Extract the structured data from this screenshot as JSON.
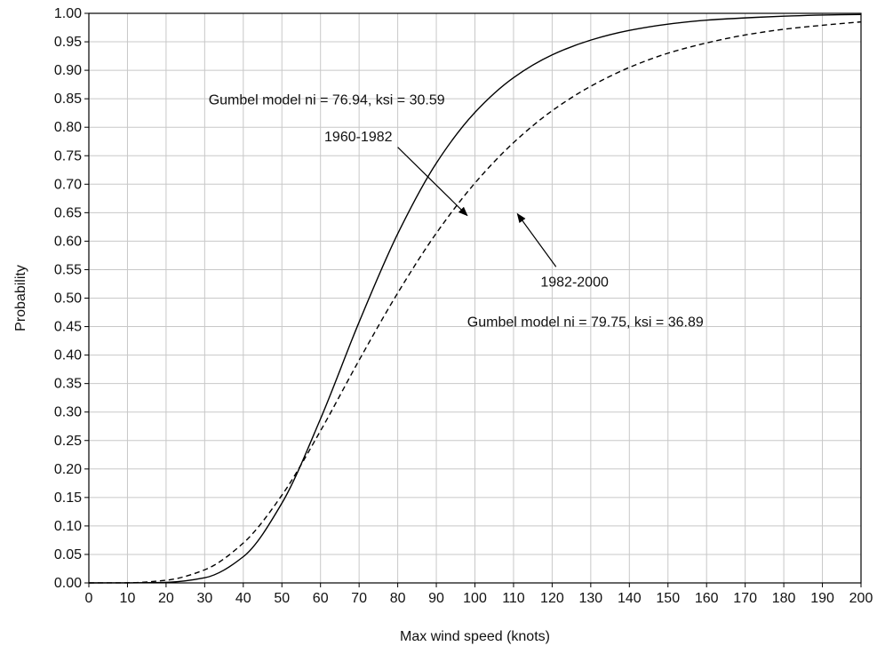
{
  "chart_data": {
    "type": "line",
    "title": "",
    "xlabel": "Max wind speed (knots)",
    "ylabel": "Probability",
    "xlim": [
      0,
      200
    ],
    "ylim": [
      0,
      1
    ],
    "x_ticks": [
      0,
      10,
      20,
      30,
      40,
      50,
      60,
      70,
      80,
      90,
      100,
      110,
      120,
      130,
      140,
      150,
      160,
      170,
      180,
      190,
      200
    ],
    "y_ticks": [
      0,
      0.05,
      0.1,
      0.15,
      0.2,
      0.25,
      0.3,
      0.35,
      0.4,
      0.45,
      0.5,
      0.55,
      0.6,
      0.65,
      0.7,
      0.75,
      0.8,
      0.85,
      0.9,
      0.95,
      1.0
    ],
    "x_tick_labels": [
      "0",
      "10",
      "20",
      "30",
      "40",
      "50",
      "60",
      "70",
      "80",
      "90",
      "100",
      "110",
      "120",
      "130",
      "140",
      "150",
      "160",
      "170",
      "180",
      "190",
      "200"
    ],
    "y_tick_labels": [
      "0.00",
      "0.05",
      "0.10",
      "0.15",
      "0.20",
      "0.25",
      "0.30",
      "0.35",
      "0.40",
      "0.45",
      "0.50",
      "0.55",
      "0.60",
      "0.65",
      "0.70",
      "0.75",
      "0.80",
      "0.85",
      "0.90",
      "0.95",
      "1.00"
    ],
    "grid": true,
    "x": [
      0,
      10,
      20,
      30,
      40,
      50,
      60,
      70,
      80,
      90,
      100,
      110,
      120,
      130,
      140,
      150,
      160,
      170,
      180,
      190,
      200
    ],
    "series": [
      {
        "label": "1960-1982",
        "model": "Gumbel model ni = 76.94, ksi = 30.59",
        "style": "solid",
        "color": "#000000",
        "values": [
          0.0,
          0.0001,
          0.0009,
          0.009,
          0.046,
          0.14,
          0.288,
          0.458,
          0.613,
          0.737,
          0.826,
          0.887,
          0.927,
          0.953,
          0.97,
          0.981,
          0.988,
          0.992,
          0.995,
          0.997,
          0.998
        ]
      },
      {
        "label": "1982-2000",
        "model": "Gumbel model ni = 79.75, ksi = 36.89",
        "style": "dashed",
        "color": "#000000",
        "values": [
          0.0,
          0.0002,
          0.0047,
          0.023,
          0.07,
          0.154,
          0.267,
          0.391,
          0.509,
          0.614,
          0.702,
          0.773,
          0.829,
          0.872,
          0.905,
          0.93,
          0.948,
          0.962,
          0.972,
          0.979,
          0.985
        ]
      }
    ],
    "annotations": [
      {
        "id": "model-1",
        "text": "Gumbel model ni = 76.94, ksi = 30.59",
        "x": 31,
        "y": 0.84
      },
      {
        "id": "label-1",
        "text": "1960-1982",
        "x": 61,
        "y": 0.775
      },
      {
        "id": "label-2",
        "text": "1982-2000",
        "x": 117,
        "y": 0.52
      },
      {
        "id": "model-2",
        "text": "Gumbel model ni = 79.75, ksi = 36.89",
        "x": 98,
        "y": 0.45
      }
    ],
    "arrows": [
      {
        "from": [
          80,
          0.765
        ],
        "to": [
          98,
          0.645
        ]
      },
      {
        "from": [
          121,
          0.555
        ],
        "to": [
          111,
          0.648
        ]
      }
    ]
  }
}
